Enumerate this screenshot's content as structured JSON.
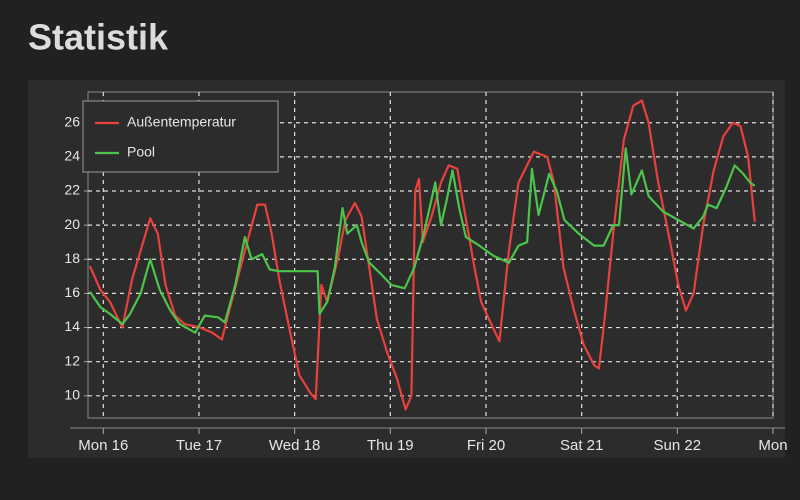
{
  "chart_data": {
    "type": "line",
    "title": "Statistik",
    "xlim": [
      -0.16,
      7.0
    ],
    "ylim": [
      8.7,
      27.8
    ],
    "xticks": [
      {
        "value": 0,
        "label": "Mon 16"
      },
      {
        "value": 1,
        "label": "Tue 17"
      },
      {
        "value": 2,
        "label": "Wed 18"
      },
      {
        "value": 3,
        "label": "Thu 19"
      },
      {
        "value": 4,
        "label": "Fri 20"
      },
      {
        "value": 5,
        "label": "Sat 21"
      },
      {
        "value": 6,
        "label": "Sun 22"
      },
      {
        "value": 7,
        "label": "Mon"
      }
    ],
    "yticks": [
      10,
      12,
      14,
      16,
      18,
      20,
      22,
      24,
      26
    ],
    "grid": true,
    "legend": "upper-left",
    "series": [
      {
        "name": "Außentemperatur",
        "color": "#e8413c",
        "x": [
          -0.14,
          -0.03,
          0.07,
          0.2,
          0.3,
          0.39,
          0.49,
          0.57,
          0.65,
          0.75,
          0.85,
          1.01,
          1.14,
          1.24,
          1.34,
          1.48,
          1.61,
          1.69,
          1.76,
          1.84,
          1.95,
          2.05,
          2.16,
          2.22,
          2.28,
          2.34,
          2.45,
          2.53,
          2.63,
          2.7,
          2.78,
          2.86,
          2.97,
          3.07,
          3.16,
          3.22,
          3.26,
          3.3,
          3.34,
          3.43,
          3.53,
          3.61,
          3.7,
          3.77,
          3.88,
          3.95,
          4.03,
          4.14,
          4.24,
          4.34,
          4.5,
          4.64,
          4.71,
          4.81,
          4.92,
          5.02,
          5.13,
          5.18,
          5.24,
          5.33,
          5.44,
          5.54,
          5.63,
          5.7,
          5.8,
          5.89,
          6.01,
          6.09,
          6.17,
          6.27,
          6.38,
          6.48,
          6.58,
          6.66,
          6.74,
          6.81
        ],
        "values": [
          17.6,
          16.2,
          15.5,
          14.0,
          16.8,
          18.5,
          20.4,
          19.5,
          16.5,
          14.7,
          14.2,
          14.0,
          13.7,
          13.3,
          15.5,
          18.5,
          21.2,
          21.2,
          19.5,
          16.8,
          13.8,
          11.2,
          10.2,
          9.8,
          16.5,
          15.5,
          18.0,
          20.3,
          21.3,
          20.5,
          17.5,
          14.5,
          12.5,
          11.0,
          9.2,
          10.0,
          22.0,
          22.7,
          19.0,
          20.5,
          22.5,
          23.5,
          23.3,
          21.0,
          17.5,
          15.5,
          14.5,
          13.2,
          18.5,
          22.5,
          24.3,
          24.0,
          22.5,
          17.5,
          15.0,
          13.0,
          11.8,
          11.6,
          14.5,
          19.5,
          25.0,
          27.0,
          27.3,
          26.0,
          22.5,
          20.0,
          16.5,
          15.0,
          16.0,
          20.0,
          23.2,
          25.2,
          26.0,
          25.8,
          24.0,
          20.2
        ]
      },
      {
        "name": "Pool",
        "color": "#4cc44a",
        "x": [
          -0.14,
          -0.03,
          0.07,
          0.2,
          0.28,
          0.39,
          0.49,
          0.59,
          0.7,
          0.8,
          0.96,
          1.06,
          1.2,
          1.27,
          1.38,
          1.48,
          1.55,
          1.66,
          1.74,
          1.84,
          2.05,
          2.24,
          2.26,
          2.34,
          2.42,
          2.5,
          2.55,
          2.65,
          2.7,
          2.78,
          2.89,
          3.01,
          3.15,
          3.25,
          3.35,
          3.47,
          3.53,
          3.59,
          3.65,
          3.72,
          3.79,
          3.93,
          4.08,
          4.24,
          4.34,
          4.43,
          4.48,
          4.55,
          4.66,
          4.74,
          4.82,
          4.97,
          5.13,
          5.23,
          5.33,
          5.39,
          5.46,
          5.52,
          5.63,
          5.7,
          5.85,
          6.01,
          6.17,
          6.27,
          6.32,
          6.41,
          6.51,
          6.6,
          6.69,
          6.76,
          6.81
        ],
        "values": [
          16.1,
          15.2,
          14.8,
          14.2,
          14.8,
          16.0,
          18.0,
          16.2,
          15.0,
          14.2,
          13.7,
          14.7,
          14.6,
          14.3,
          16.5,
          19.3,
          18.0,
          18.3,
          17.4,
          17.3,
          17.3,
          17.3,
          14.8,
          15.5,
          17.5,
          21.0,
          19.5,
          20.0,
          19.0,
          17.8,
          17.2,
          16.5,
          16.3,
          17.5,
          19.5,
          22.5,
          20.0,
          21.5,
          23.2,
          21.0,
          19.3,
          18.8,
          18.2,
          17.8,
          18.8,
          19.0,
          23.3,
          20.6,
          23.0,
          22.0,
          20.3,
          19.5,
          18.8,
          18.8,
          20.0,
          20.0,
          24.5,
          21.8,
          23.2,
          21.7,
          20.8,
          20.3,
          19.8,
          20.5,
          21.2,
          21.0,
          22.2,
          23.5,
          23.0,
          22.5,
          22.3
        ]
      }
    ]
  }
}
